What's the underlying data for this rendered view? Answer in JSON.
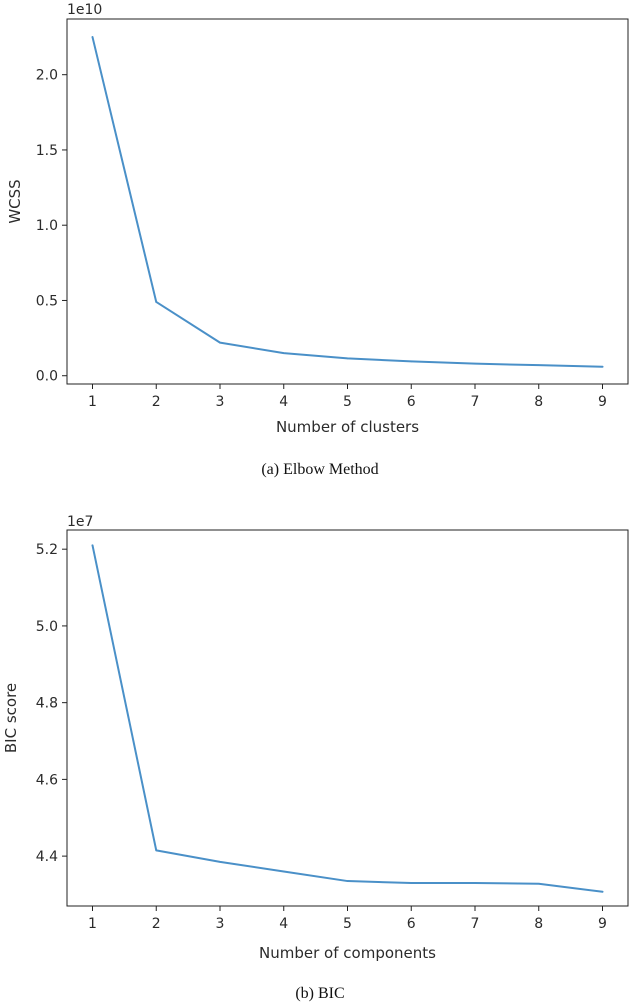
{
  "chart_data": [
    {
      "type": "line",
      "caption": "(a)  Elbow Method",
      "offset_text": "1e10",
      "xlabel": "Number of clusters",
      "ylabel": "WCSS",
      "x": [
        1,
        2,
        3,
        4,
        5,
        6,
        7,
        8,
        9
      ],
      "series": [
        {
          "values": [
            22.5,
            4.9,
            2.2,
            1.5,
            1.15,
            0.95,
            0.8,
            0.7,
            0.6
          ]
        }
      ],
      "xticks": [
        1,
        2,
        3,
        4,
        5,
        6,
        7,
        8,
        9
      ],
      "xtick_labels": [
        "1",
        "2",
        "3",
        "4",
        "5",
        "6",
        "7",
        "8",
        "9"
      ],
      "yticks": [
        0,
        5,
        10,
        15,
        20
      ],
      "ytick_labels": [
        "0.0",
        "0.5",
        "1.0",
        "1.5",
        "2.0"
      ],
      "xlim": [
        0.6,
        9.4
      ],
      "ylim": [
        -0.55,
        23.7
      ],
      "grid": false,
      "color": "#4a90c8"
    },
    {
      "type": "line",
      "caption": "(b)  BIC",
      "offset_text": "1e7",
      "xlabel": "Number of components",
      "ylabel": "BIC score",
      "x": [
        1,
        2,
        3,
        4,
        5,
        6,
        7,
        8,
        9
      ],
      "series": [
        {
          "values": [
            5.21,
            4.415,
            4.385,
            4.36,
            4.335,
            4.33,
            4.33,
            4.328,
            4.307
          ]
        }
      ],
      "xticks": [
        1,
        2,
        3,
        4,
        5,
        6,
        7,
        8,
        9
      ],
      "xtick_labels": [
        "1",
        "2",
        "3",
        "4",
        "5",
        "6",
        "7",
        "8",
        "9"
      ],
      "yticks": [
        4.4,
        4.6,
        4.8,
        5.0,
        5.2
      ],
      "ytick_labels": [
        "4.4",
        "4.6",
        "4.8",
        "5.0",
        "5.2"
      ],
      "xlim": [
        0.6,
        9.4
      ],
      "ylim": [
        4.27,
        5.25
      ],
      "grid": false,
      "color": "#4a90c8"
    }
  ]
}
